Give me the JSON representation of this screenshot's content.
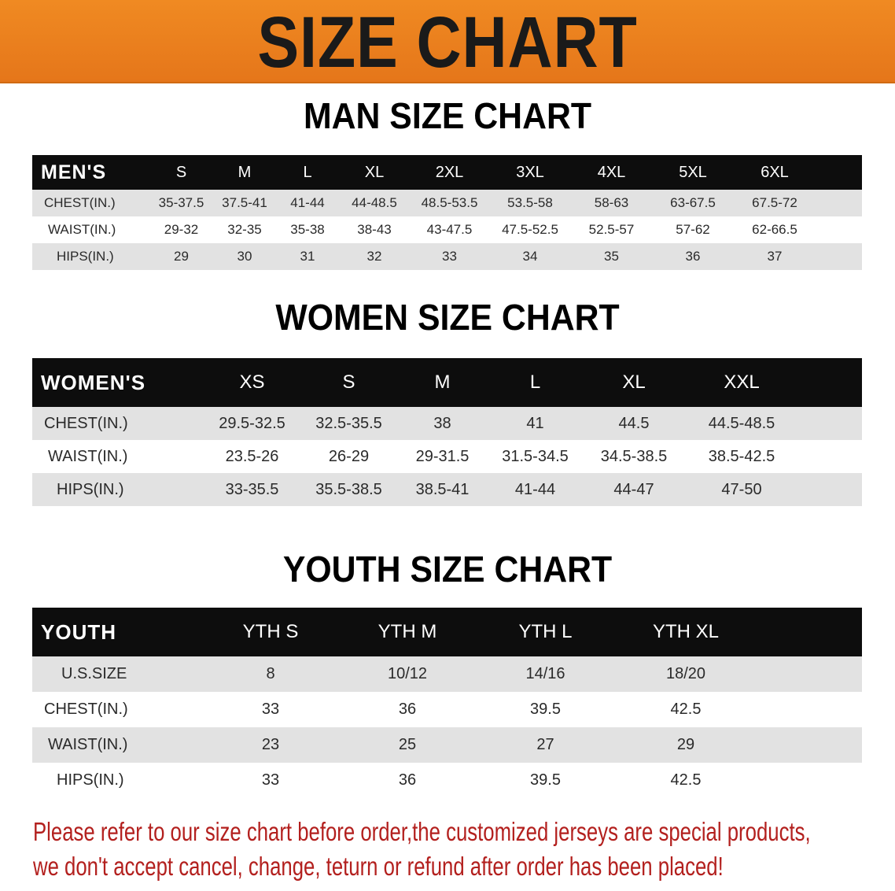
{
  "banner": {
    "title": "SIZE CHART",
    "color": "#e97d1e"
  },
  "men": {
    "title": "MAN SIZE CHART",
    "header": [
      "MEN'S",
      "S",
      "M",
      "L",
      "XL",
      "2XL",
      "3XL",
      "4XL",
      "5XL",
      "6XL"
    ],
    "rows": [
      [
        "CHEST(IN.)",
        "35-37.5",
        "37.5-41",
        "41-44",
        "44-48.5",
        "48.5-53.5",
        "53.5-58",
        "58-63",
        "63-67.5",
        "67.5-72"
      ],
      [
        "WAIST(IN.)",
        "29-32",
        "32-35",
        "35-38",
        "38-43",
        "43-47.5",
        "47.5-52.5",
        "52.5-57",
        "57-62",
        "62-66.5"
      ],
      [
        "HIPS(IN.)",
        "29",
        "30",
        "31",
        "32",
        "33",
        "34",
        "35",
        "36",
        "37"
      ]
    ]
  },
  "women": {
    "title": "WOMEN SIZE CHART",
    "header": [
      "WOMEN'S",
      "XS",
      "S",
      "M",
      "L",
      "XL",
      "XXL"
    ],
    "rows": [
      [
        "CHEST(IN.)",
        "29.5-32.5",
        "32.5-35.5",
        "38",
        "41",
        "44.5",
        "44.5-48.5"
      ],
      [
        "WAIST(IN.)",
        "23.5-26",
        "26-29",
        "29-31.5",
        "31.5-34.5",
        "34.5-38.5",
        "38.5-42.5"
      ],
      [
        "HIPS(IN.)",
        "33-35.5",
        "35.5-38.5",
        "38.5-41",
        "41-44",
        "44-47",
        "47-50"
      ]
    ]
  },
  "youth": {
    "title": "YOUTH SIZE CHART",
    "header": [
      "YOUTH",
      "YTH S",
      "YTH M",
      "YTH L",
      "YTH XL"
    ],
    "rows": [
      [
        "U.S.SIZE",
        "8",
        "10/12",
        "14/16",
        "18/20"
      ],
      [
        "CHEST(IN.)",
        "33",
        "36",
        "39.5",
        "42.5"
      ],
      [
        "WAIST(IN.)",
        "23",
        "25",
        "27",
        "29"
      ],
      [
        "HIPS(IN.)",
        "33",
        "36",
        "39.5",
        "42.5"
      ]
    ]
  },
  "note": {
    "line1": "Please refer to our size chart before order,the customized jerseys are special products,",
    "line2": "we don't accept cancel, change, teturn or refund after order has been placed!",
    "color": "#b3201e"
  }
}
